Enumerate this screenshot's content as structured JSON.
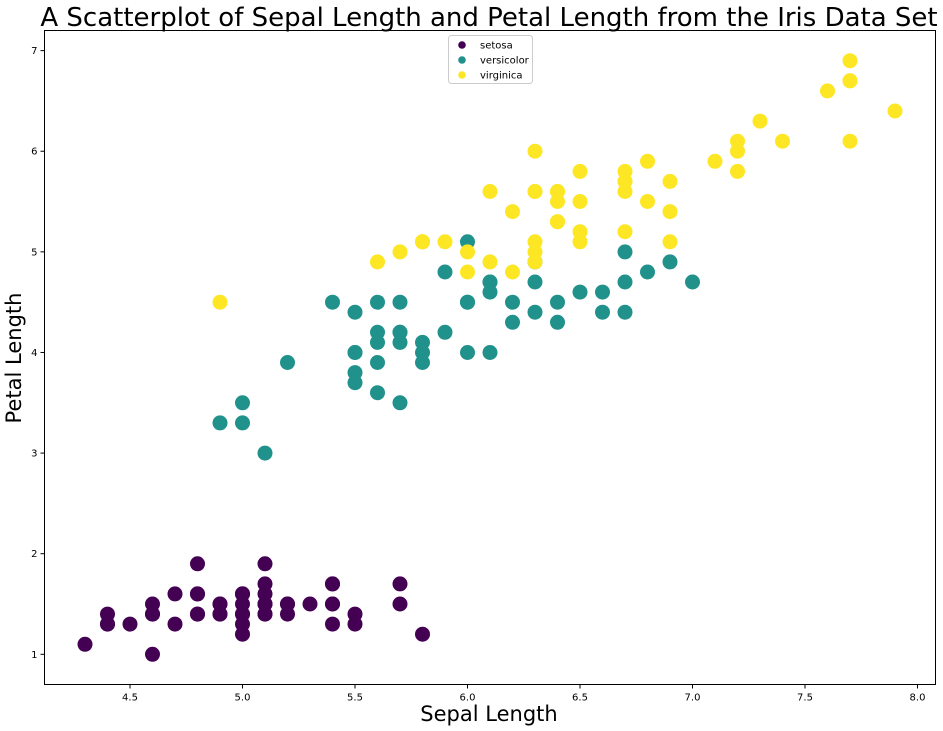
{
  "chart_data": {
    "type": "scatter",
    "title": "A Scatterplot of Sepal Length and Petal Length from the Iris Data Set",
    "xlabel": "Sepal Length",
    "ylabel": "Petal Length",
    "xlim": [
      4.12,
      8.08
    ],
    "ylim": [
      0.7,
      7.2
    ],
    "xticks": [
      "4.5",
      "5.0",
      "5.5",
      "6.0",
      "6.5",
      "7.0",
      "7.5",
      "8.0"
    ],
    "yticks": [
      "1",
      "2",
      "3",
      "4",
      "5",
      "6",
      "7"
    ],
    "grid": false,
    "legend_position": "top-center",
    "series": [
      {
        "name": "setosa",
        "color": "#440154",
        "points": [
          [
            5.1,
            1.4
          ],
          [
            4.9,
            1.4
          ],
          [
            4.7,
            1.3
          ],
          [
            4.6,
            1.5
          ],
          [
            5.0,
            1.4
          ],
          [
            5.4,
            1.7
          ],
          [
            4.6,
            1.4
          ],
          [
            5.0,
            1.5
          ],
          [
            4.4,
            1.4
          ],
          [
            4.9,
            1.5
          ],
          [
            5.4,
            1.5
          ],
          [
            4.8,
            1.6
          ],
          [
            4.8,
            1.4
          ],
          [
            4.3,
            1.1
          ],
          [
            5.8,
            1.2
          ],
          [
            5.7,
            1.5
          ],
          [
            5.4,
            1.3
          ],
          [
            5.1,
            1.4
          ],
          [
            5.7,
            1.7
          ],
          [
            5.1,
            1.5
          ],
          [
            5.4,
            1.7
          ],
          [
            5.1,
            1.5
          ],
          [
            4.6,
            1.0
          ],
          [
            5.1,
            1.7
          ],
          [
            4.8,
            1.9
          ],
          [
            5.0,
            1.6
          ],
          [
            5.0,
            1.6
          ],
          [
            5.2,
            1.5
          ],
          [
            5.2,
            1.4
          ],
          [
            4.7,
            1.6
          ],
          [
            4.8,
            1.6
          ],
          [
            5.4,
            1.5
          ],
          [
            5.2,
            1.5
          ],
          [
            5.5,
            1.4
          ],
          [
            4.9,
            1.5
          ],
          [
            5.0,
            1.2
          ],
          [
            5.5,
            1.3
          ],
          [
            4.9,
            1.4
          ],
          [
            4.4,
            1.3
          ],
          [
            5.1,
            1.5
          ],
          [
            5.0,
            1.3
          ],
          [
            4.5,
            1.3
          ],
          [
            4.4,
            1.3
          ],
          [
            5.0,
            1.6
          ],
          [
            5.1,
            1.9
          ],
          [
            4.8,
            1.4
          ],
          [
            5.1,
            1.6
          ],
          [
            4.6,
            1.4
          ],
          [
            5.3,
            1.5
          ],
          [
            5.0,
            1.4
          ]
        ]
      },
      {
        "name": "versicolor",
        "color": "#21918c",
        "points": [
          [
            7.0,
            4.7
          ],
          [
            6.4,
            4.5
          ],
          [
            6.9,
            4.9
          ],
          [
            5.5,
            4.0
          ],
          [
            6.5,
            4.6
          ],
          [
            5.7,
            4.5
          ],
          [
            6.3,
            4.7
          ],
          [
            4.9,
            3.3
          ],
          [
            6.6,
            4.6
          ],
          [
            5.2,
            3.9
          ],
          [
            5.0,
            3.5
          ],
          [
            5.9,
            4.2
          ],
          [
            6.0,
            4.0
          ],
          [
            6.1,
            4.7
          ],
          [
            5.6,
            3.6
          ],
          [
            6.7,
            4.4
          ],
          [
            5.6,
            4.5
          ],
          [
            5.8,
            4.1
          ],
          [
            6.2,
            4.5
          ],
          [
            5.6,
            3.9
          ],
          [
            5.9,
            4.8
          ],
          [
            6.1,
            4.0
          ],
          [
            6.3,
            4.9
          ],
          [
            6.1,
            4.7
          ],
          [
            6.4,
            4.3
          ],
          [
            6.6,
            4.4
          ],
          [
            6.8,
            4.8
          ],
          [
            6.7,
            5.0
          ],
          [
            6.0,
            4.5
          ],
          [
            5.7,
            3.5
          ],
          [
            5.5,
            3.8
          ],
          [
            5.5,
            3.7
          ],
          [
            5.8,
            3.9
          ],
          [
            6.0,
            5.1
          ],
          [
            5.4,
            4.5
          ],
          [
            6.0,
            4.5
          ],
          [
            6.7,
            4.7
          ],
          [
            6.3,
            4.4
          ],
          [
            5.6,
            4.1
          ],
          [
            5.5,
            4.0
          ],
          [
            5.5,
            4.4
          ],
          [
            6.1,
            4.6
          ],
          [
            5.8,
            4.0
          ],
          [
            5.0,
            3.3
          ],
          [
            5.6,
            4.2
          ],
          [
            5.7,
            4.2
          ],
          [
            5.7,
            4.2
          ],
          [
            6.2,
            4.3
          ],
          [
            5.1,
            3.0
          ],
          [
            5.7,
            4.1
          ]
        ]
      },
      {
        "name": "virginica",
        "color": "#fde725",
        "points": [
          [
            6.3,
            6.0
          ],
          [
            5.8,
            5.1
          ],
          [
            7.1,
            5.9
          ],
          [
            6.3,
            5.6
          ],
          [
            6.5,
            5.8
          ],
          [
            7.6,
            6.6
          ],
          [
            4.9,
            4.5
          ],
          [
            7.3,
            6.3
          ],
          [
            6.7,
            5.8
          ],
          [
            7.2,
            6.1
          ],
          [
            6.5,
            5.1
          ],
          [
            6.4,
            5.3
          ],
          [
            6.8,
            5.5
          ],
          [
            5.7,
            5.0
          ],
          [
            5.8,
            5.1
          ],
          [
            6.4,
            5.3
          ],
          [
            6.5,
            5.5
          ],
          [
            7.7,
            6.7
          ],
          [
            7.7,
            6.9
          ],
          [
            6.0,
            5.0
          ],
          [
            6.9,
            5.7
          ],
          [
            5.6,
            4.9
          ],
          [
            7.7,
            6.7
          ],
          [
            6.3,
            4.9
          ],
          [
            6.7,
            5.7
          ],
          [
            7.2,
            6.0
          ],
          [
            6.2,
            4.8
          ],
          [
            6.1,
            4.9
          ],
          [
            6.4,
            5.6
          ],
          [
            7.2,
            5.8
          ],
          [
            7.4,
            6.1
          ],
          [
            7.9,
            6.4
          ],
          [
            6.4,
            5.6
          ],
          [
            6.3,
            5.1
          ],
          [
            6.1,
            5.6
          ],
          [
            7.7,
            6.1
          ],
          [
            6.3,
            5.6
          ],
          [
            6.4,
            5.5
          ],
          [
            6.0,
            4.8
          ],
          [
            6.9,
            5.4
          ],
          [
            6.7,
            5.6
          ],
          [
            6.9,
            5.1
          ],
          [
            5.8,
            5.1
          ],
          [
            6.8,
            5.9
          ],
          [
            6.7,
            5.7
          ],
          [
            6.7,
            5.2
          ],
          [
            6.3,
            5.0
          ],
          [
            6.5,
            5.2
          ],
          [
            6.2,
            5.4
          ],
          [
            5.9,
            5.1
          ]
        ]
      }
    ]
  }
}
